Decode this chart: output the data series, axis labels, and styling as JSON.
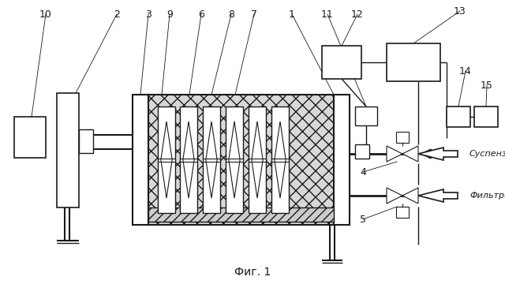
{
  "bg_color": "#ffffff",
  "line_color": "#1a1a1a",
  "title": "Фиг. 1",
  "title_fontsize": 10,
  "label_fontsize": 9
}
